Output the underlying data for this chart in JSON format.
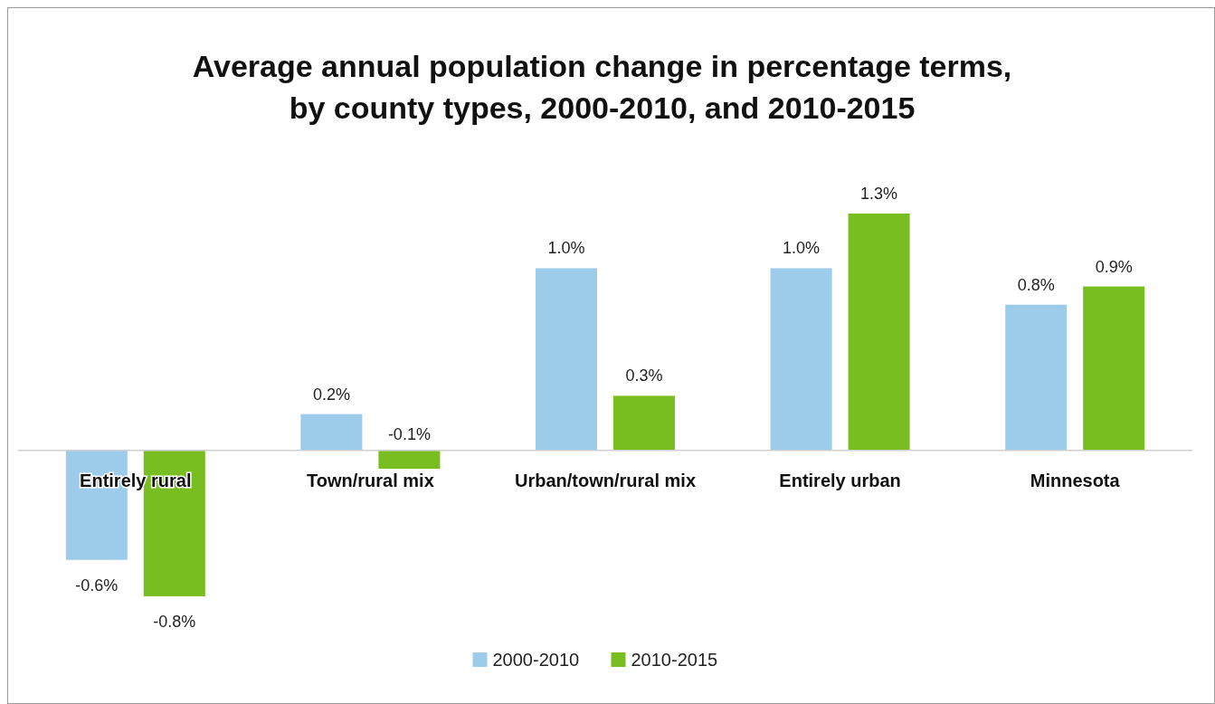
{
  "chart_data": {
    "type": "bar",
    "title": "Average annual population change in percentage terms, by county types, 2000-2010, and 2010-2015",
    "categories": [
      "Entirely rural",
      "Town/rural mix",
      "Urban/town/rural mix",
      "Entirely urban",
      "Minnesota"
    ],
    "series": [
      {
        "name": "2000-2010",
        "color": "#9dcbea",
        "values": [
          -0.6,
          0.2,
          1.0,
          1.0,
          0.8
        ],
        "value_labels": [
          "-0.6%",
          "0.2%",
          "1.0%",
          "1.0%",
          "0.8%"
        ]
      },
      {
        "name": "2010-2015",
        "color": "#78be20",
        "values": [
          -0.8,
          -0.1,
          0.3,
          1.3,
          0.9
        ],
        "value_labels": [
          "-0.8%",
          "-0.1%",
          "0.3%",
          "1.3%",
          "0.9%"
        ]
      }
    ],
    "legend": "bottom"
  }
}
